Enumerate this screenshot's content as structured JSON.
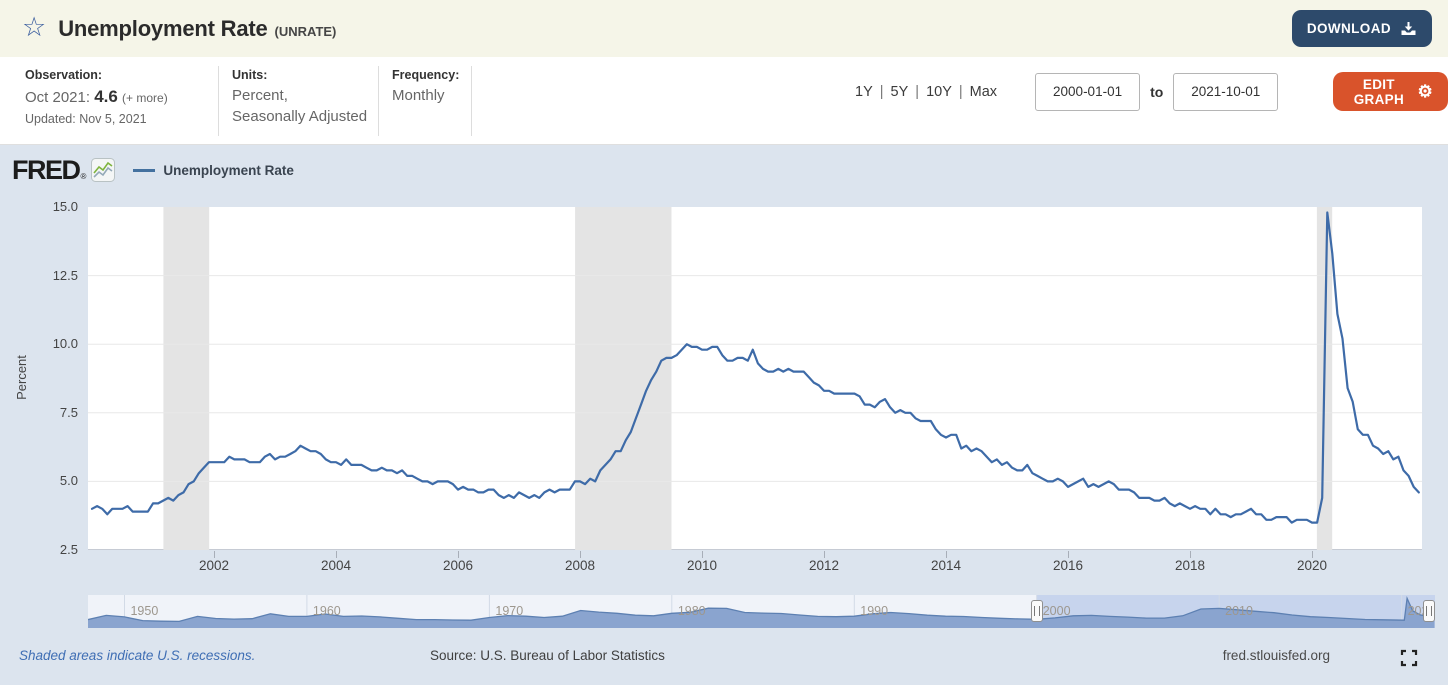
{
  "header": {
    "title": "Unemployment Rate",
    "series_id": "(UNRATE)",
    "download_label": "DOWNLOAD"
  },
  "info": {
    "observation_label": "Observation:",
    "observation_date": "Oct 2021:",
    "observation_value": "4.6",
    "observation_more": "(+ more)",
    "updated": "Updated: Nov 5, 2021",
    "units_label": "Units:",
    "units_line1": "Percent,",
    "units_line2": "Seasonally Adjusted",
    "frequency_label": "Frequency:",
    "frequency_value": "Monthly"
  },
  "toolbar": {
    "range_options": [
      "1Y",
      "5Y",
      "10Y",
      "Max"
    ],
    "range_separator": "|",
    "date_start": "2000-01-01",
    "date_to_label": "to",
    "date_end": "2021-10-01",
    "edit_graph_label": "EDIT GRAPH"
  },
  "brand": {
    "logo_text": "FRED",
    "registered_mark": "®",
    "logo_icon": "fred-sparkline-icon"
  },
  "legend": {
    "series_label": "Unemployment Rate",
    "series_color": "#3e6ba8"
  },
  "footer": {
    "recession_note": "Shaded areas indicate U.S. recessions.",
    "source": "Source: U.S. Bureau of Labor Statistics",
    "site": "fred.stlouisfed.org"
  },
  "chart_data": {
    "type": "line",
    "title": "Unemployment Rate",
    "ylabel": "Percent",
    "ylim": [
      2.5,
      15.0
    ],
    "yticks": [
      15.0,
      12.5,
      10.0,
      7.5,
      5.0,
      2.5
    ],
    "xticks": [
      2002,
      2004,
      2006,
      2008,
      2010,
      2012,
      2014,
      2016,
      2018,
      2020
    ],
    "x_start": "2000-01",
    "x_end": "2021-10",
    "frequency": "monthly",
    "grid": true,
    "line_color": "#3e6ba8",
    "recession_color": "#e4e4e4",
    "recessions": [
      [
        2001.17,
        2001.92
      ],
      [
        2007.92,
        2009.5
      ],
      [
        2020.08,
        2020.33
      ]
    ],
    "values": [
      4.0,
      4.1,
      4.0,
      3.8,
      4.0,
      4.0,
      4.0,
      4.1,
      3.9,
      3.9,
      3.9,
      3.9,
      4.2,
      4.2,
      4.3,
      4.4,
      4.3,
      4.5,
      4.6,
      4.9,
      5.0,
      5.3,
      5.5,
      5.7,
      5.7,
      5.7,
      5.7,
      5.9,
      5.8,
      5.8,
      5.8,
      5.7,
      5.7,
      5.7,
      5.9,
      6.0,
      5.8,
      5.9,
      5.9,
      6.0,
      6.1,
      6.3,
      6.2,
      6.1,
      6.1,
      6.0,
      5.8,
      5.7,
      5.7,
      5.6,
      5.8,
      5.6,
      5.6,
      5.6,
      5.5,
      5.4,
      5.4,
      5.5,
      5.4,
      5.4,
      5.3,
      5.4,
      5.2,
      5.2,
      5.1,
      5.0,
      5.0,
      4.9,
      5.0,
      5.0,
      5.0,
      4.9,
      4.7,
      4.8,
      4.7,
      4.7,
      4.6,
      4.6,
      4.7,
      4.7,
      4.5,
      4.4,
      4.5,
      4.4,
      4.6,
      4.5,
      4.4,
      4.5,
      4.4,
      4.6,
      4.7,
      4.6,
      4.7,
      4.7,
      4.7,
      5.0,
      5.0,
      4.9,
      5.1,
      5.0,
      5.4,
      5.6,
      5.8,
      6.1,
      6.1,
      6.5,
      6.8,
      7.3,
      7.8,
      8.3,
      8.7,
      9.0,
      9.4,
      9.5,
      9.5,
      9.6,
      9.8,
      10.0,
      9.9,
      9.9,
      9.8,
      9.8,
      9.9,
      9.9,
      9.6,
      9.4,
      9.4,
      9.5,
      9.5,
      9.4,
      9.8,
      9.3,
      9.1,
      9.0,
      9.0,
      9.1,
      9.0,
      9.1,
      9.0,
      9.0,
      9.0,
      8.8,
      8.6,
      8.5,
      8.3,
      8.3,
      8.2,
      8.2,
      8.2,
      8.2,
      8.2,
      8.1,
      7.8,
      7.8,
      7.7,
      7.9,
      8.0,
      7.7,
      7.5,
      7.6,
      7.5,
      7.5,
      7.3,
      7.2,
      7.2,
      7.2,
      6.9,
      6.7,
      6.6,
      6.7,
      6.7,
      6.2,
      6.3,
      6.1,
      6.2,
      6.1,
      5.9,
      5.7,
      5.8,
      5.6,
      5.7,
      5.5,
      5.4,
      5.4,
      5.6,
      5.3,
      5.2,
      5.1,
      5.0,
      5.0,
      5.1,
      5.0,
      4.8,
      4.9,
      5.0,
      5.1,
      4.8,
      4.9,
      4.8,
      4.9,
      5.0,
      4.9,
      4.7,
      4.7,
      4.7,
      4.6,
      4.4,
      4.4,
      4.4,
      4.3,
      4.3,
      4.4,
      4.2,
      4.1,
      4.2,
      4.1,
      4.0,
      4.1,
      4.0,
      4.0,
      3.8,
      4.0,
      3.8,
      3.8,
      3.7,
      3.8,
      3.8,
      3.9,
      4.0,
      3.8,
      3.8,
      3.6,
      3.6,
      3.7,
      3.7,
      3.7,
      3.5,
      3.6,
      3.6,
      3.6,
      3.5,
      3.5,
      4.4,
      14.8,
      13.3,
      11.1,
      10.2,
      8.4,
      7.9,
      6.9,
      6.7,
      6.7,
      6.3,
      6.2,
      6.0,
      6.1,
      5.8,
      5.9,
      5.4,
      5.2,
      4.8,
      4.6
    ],
    "navigator": {
      "range": [
        1948,
        2021.83
      ],
      "selection": [
        2000.0,
        2021.83
      ],
      "labels": [
        1950,
        1960,
        1970,
        1980,
        1990,
        2000,
        2010,
        2020
      ],
      "area_fill": "#8aa4cf",
      "area_line": "#5d80b2",
      "points": [
        [
          1948,
          3.8
        ],
        [
          1949,
          6.0
        ],
        [
          1950,
          5.2
        ],
        [
          1951,
          3.3
        ],
        [
          1952,
          3.0
        ],
        [
          1953,
          2.9
        ],
        [
          1954,
          5.5
        ],
        [
          1955,
          4.4
        ],
        [
          1956,
          4.1
        ],
        [
          1957,
          4.3
        ],
        [
          1958,
          6.8
        ],
        [
          1959,
          5.5
        ],
        [
          1960,
          5.5
        ],
        [
          1961,
          6.7
        ],
        [
          1962,
          5.5
        ],
        [
          1963,
          5.7
        ],
        [
          1964,
          5.2
        ],
        [
          1965,
          4.5
        ],
        [
          1966,
          3.8
        ],
        [
          1967,
          3.8
        ],
        [
          1968,
          3.6
        ],
        [
          1969,
          3.5
        ],
        [
          1970,
          4.9
        ],
        [
          1971,
          5.9
        ],
        [
          1972,
          5.6
        ],
        [
          1973,
          4.9
        ],
        [
          1974,
          5.6
        ],
        [
          1975,
          8.5
        ],
        [
          1976,
          7.7
        ],
        [
          1977,
          7.1
        ],
        [
          1978,
          6.1
        ],
        [
          1979,
          5.8
        ],
        [
          1980,
          7.1
        ],
        [
          1981,
          7.6
        ],
        [
          1982,
          9.7
        ],
        [
          1983,
          9.6
        ],
        [
          1984,
          7.5
        ],
        [
          1985,
          7.2
        ],
        [
          1986,
          7.0
        ],
        [
          1987,
          6.2
        ],
        [
          1988,
          5.5
        ],
        [
          1989,
          5.3
        ],
        [
          1990,
          5.6
        ],
        [
          1991,
          6.8
        ],
        [
          1992,
          7.5
        ],
        [
          1993,
          6.9
        ],
        [
          1994,
          6.1
        ],
        [
          1995,
          5.6
        ],
        [
          1996,
          5.4
        ],
        [
          1997,
          4.9
        ],
        [
          1998,
          4.5
        ],
        [
          1999,
          4.2
        ],
        [
          2000,
          4.0
        ],
        [
          2001,
          4.7
        ],
        [
          2002,
          5.8
        ],
        [
          2003,
          6.0
        ],
        [
          2004,
          5.5
        ],
        [
          2005,
          5.1
        ],
        [
          2006,
          4.6
        ],
        [
          2007,
          4.6
        ],
        [
          2008,
          5.8
        ],
        [
          2009,
          9.3
        ],
        [
          2010,
          9.6
        ],
        [
          2011,
          8.9
        ],
        [
          2012,
          8.1
        ],
        [
          2013,
          7.4
        ],
        [
          2014,
          6.2
        ],
        [
          2015,
          5.3
        ],
        [
          2016,
          4.9
        ],
        [
          2017,
          4.4
        ],
        [
          2018,
          3.9
        ],
        [
          2019,
          3.7
        ],
        [
          2020.15,
          3.5
        ],
        [
          2020.3,
          14.8
        ],
        [
          2020.6,
          8.4
        ],
        [
          2021,
          6.3
        ],
        [
          2021.8,
          4.6
        ]
      ]
    }
  }
}
